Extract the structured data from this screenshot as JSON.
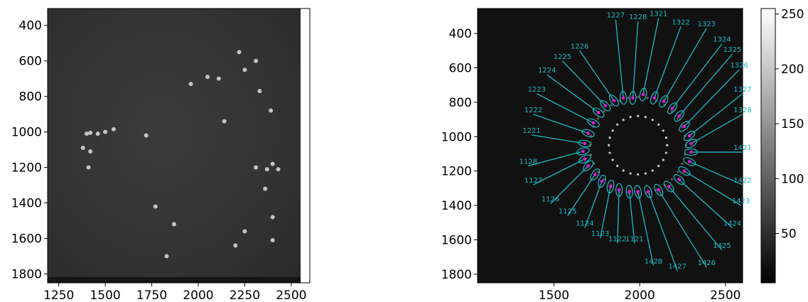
{
  "chart_data": [
    {
      "type": "heatmap",
      "title": "",
      "xlabel": "",
      "ylabel": "",
      "xlim": [
        1190,
        2600
      ],
      "ylim": [
        1850,
        305
      ],
      "x_ticks": [
        1250,
        1500,
        1750,
        2000,
        2250,
        2500
      ],
      "y_ticks": [
        400,
        600,
        800,
        1000,
        1200,
        1400,
        1600,
        1800
      ],
      "grid": false,
      "colormap": "gray",
      "spots": [
        {
          "x": 1400,
          "y": 1010
        },
        {
          "x": 1420,
          "y": 1005
        },
        {
          "x": 1460,
          "y": 1010
        },
        {
          "x": 1500,
          "y": 1000
        },
        {
          "x": 1545,
          "y": 985
        },
        {
          "x": 1720,
          "y": 1020
        },
        {
          "x": 1380,
          "y": 1090
        },
        {
          "x": 1420,
          "y": 1110
        },
        {
          "x": 1410,
          "y": 1200
        },
        {
          "x": 1770,
          "y": 1420
        },
        {
          "x": 1830,
          "y": 1700
        },
        {
          "x": 1870,
          "y": 1520
        },
        {
          "x": 1960,
          "y": 730
        },
        {
          "x": 2050,
          "y": 690
        },
        {
          "x": 2110,
          "y": 700
        },
        {
          "x": 2220,
          "y": 550
        },
        {
          "x": 2250,
          "y": 650
        },
        {
          "x": 2310,
          "y": 600
        },
        {
          "x": 2330,
          "y": 770
        },
        {
          "x": 2390,
          "y": 880
        },
        {
          "x": 2310,
          "y": 1200
        },
        {
          "x": 2370,
          "y": 1210
        },
        {
          "x": 2400,
          "y": 1180
        },
        {
          "x": 2430,
          "y": 1210
        },
        {
          "x": 2360,
          "y": 1320
        },
        {
          "x": 2400,
          "y": 1610
        },
        {
          "x": 2250,
          "y": 1560
        },
        {
          "x": 2200,
          "y": 1640
        },
        {
          "x": 2400,
          "y": 1480
        },
        {
          "x": 2140,
          "y": 940
        }
      ]
    },
    {
      "type": "heatmap",
      "title": "",
      "xlabel": "",
      "ylabel": "",
      "xlim": [
        1055,
        2600
      ],
      "ylim": [
        1850,
        255
      ],
      "x_ticks": [
        1500,
        2000,
        2500
      ],
      "y_ticks": [
        400,
        600,
        800,
        1000,
        1200,
        1400,
        1600,
        1800
      ],
      "grid": false,
      "colormap": "gray",
      "colorbar": {
        "min": 5,
        "max": 255,
        "ticks": [
          50,
          100,
          150,
          200,
          250
        ]
      },
      "spot_labels": [
        {
          "label": "1227",
          "spot_x": 1905,
          "spot_y": 775,
          "label_x": 1860,
          "label_y": 320
        },
        {
          "label": "1228",
          "spot_x": 1960,
          "spot_y": 775,
          "label_x": 1990,
          "label_y": 330
        },
        {
          "label": "1321",
          "spot_x": 2020,
          "spot_y": 755,
          "label_x": 2110,
          "label_y": 310
        },
        {
          "label": "1322",
          "spot_x": 2085,
          "spot_y": 775,
          "label_x": 2240,
          "label_y": 360
        },
        {
          "label": "1323",
          "spot_x": 2140,
          "spot_y": 795,
          "label_x": 2390,
          "label_y": 370
        },
        {
          "label": "1324",
          "spot_x": 2190,
          "spot_y": 835,
          "label_x": 2480,
          "label_y": 460
        },
        {
          "label": "1325",
          "spot_x": 2230,
          "spot_y": 880,
          "label_x": 2540,
          "label_y": 520
        },
        {
          "label": "1326",
          "spot_x": 2260,
          "spot_y": 940,
          "label_x": 2580,
          "label_y": 610
        },
        {
          "label": "1327",
          "spot_x": 2290,
          "spot_y": 995,
          "label_x": 2600,
          "label_y": 750
        },
        {
          "label": "1328",
          "spot_x": 2300,
          "spot_y": 1040,
          "label_x": 2600,
          "label_y": 870
        },
        {
          "label": "1421",
          "spot_x": 2300,
          "spot_y": 1090,
          "label_x": 2600,
          "label_y": 1090
        },
        {
          "label": "1422",
          "spot_x": 2290,
          "spot_y": 1145,
          "label_x": 2600,
          "label_y": 1280
        },
        {
          "label": "1423",
          "spot_x": 2260,
          "spot_y": 1200,
          "label_x": 2590,
          "label_y": 1400
        },
        {
          "label": "1424",
          "spot_x": 2230,
          "spot_y": 1250,
          "label_x": 2540,
          "label_y": 1530
        },
        {
          "label": "1425",
          "spot_x": 2170,
          "spot_y": 1290,
          "label_x": 2480,
          "label_y": 1660
        },
        {
          "label": "1426",
          "spot_x": 2110,
          "spot_y": 1310,
          "label_x": 2390,
          "label_y": 1760
        },
        {
          "label": "1427",
          "spot_x": 2050,
          "spot_y": 1320,
          "label_x": 2220,
          "label_y": 1780
        },
        {
          "label": "1428",
          "spot_x": 1990,
          "spot_y": 1320,
          "label_x": 2080,
          "label_y": 1750
        },
        {
          "label": "1121",
          "spot_x": 1940,
          "spot_y": 1320,
          "label_x": 1970,
          "label_y": 1620
        },
        {
          "label": "1122",
          "spot_x": 1880,
          "spot_y": 1310,
          "label_x": 1870,
          "label_y": 1620
        },
        {
          "label": "1123",
          "spot_x": 1830,
          "spot_y": 1290,
          "label_x": 1770,
          "label_y": 1590
        },
        {
          "label": "1124",
          "spot_x": 1780,
          "spot_y": 1260,
          "label_x": 1680,
          "label_y": 1530
        },
        {
          "label": "1125",
          "spot_x": 1740,
          "spot_y": 1220,
          "label_x": 1580,
          "label_y": 1460
        },
        {
          "label": "1126",
          "spot_x": 1700,
          "spot_y": 1170,
          "label_x": 1480,
          "label_y": 1390
        },
        {
          "label": "1127",
          "spot_x": 1680,
          "spot_y": 1130,
          "label_x": 1380,
          "label_y": 1280
        },
        {
          "label": "1128",
          "spot_x": 1670,
          "spot_y": 1085,
          "label_x": 1350,
          "label_y": 1170
        },
        {
          "label": "1221",
          "spot_x": 1680,
          "spot_y": 1040,
          "label_x": 1370,
          "label_y": 990
        },
        {
          "label": "1222",
          "spot_x": 1700,
          "spot_y": 980,
          "label_x": 1380,
          "label_y": 870
        },
        {
          "label": "1223",
          "spot_x": 1730,
          "spot_y": 920,
          "label_x": 1400,
          "label_y": 750
        },
        {
          "label": "1224",
          "spot_x": 1760,
          "spot_y": 860,
          "label_x": 1460,
          "label_y": 640
        },
        {
          "label": "1225",
          "spot_x": 1800,
          "spot_y": 820,
          "label_x": 1550,
          "label_y": 560
        },
        {
          "label": "1226",
          "spot_x": 1850,
          "spot_y": 790,
          "label_x": 1650,
          "label_y": 500
        }
      ]
    }
  ]
}
